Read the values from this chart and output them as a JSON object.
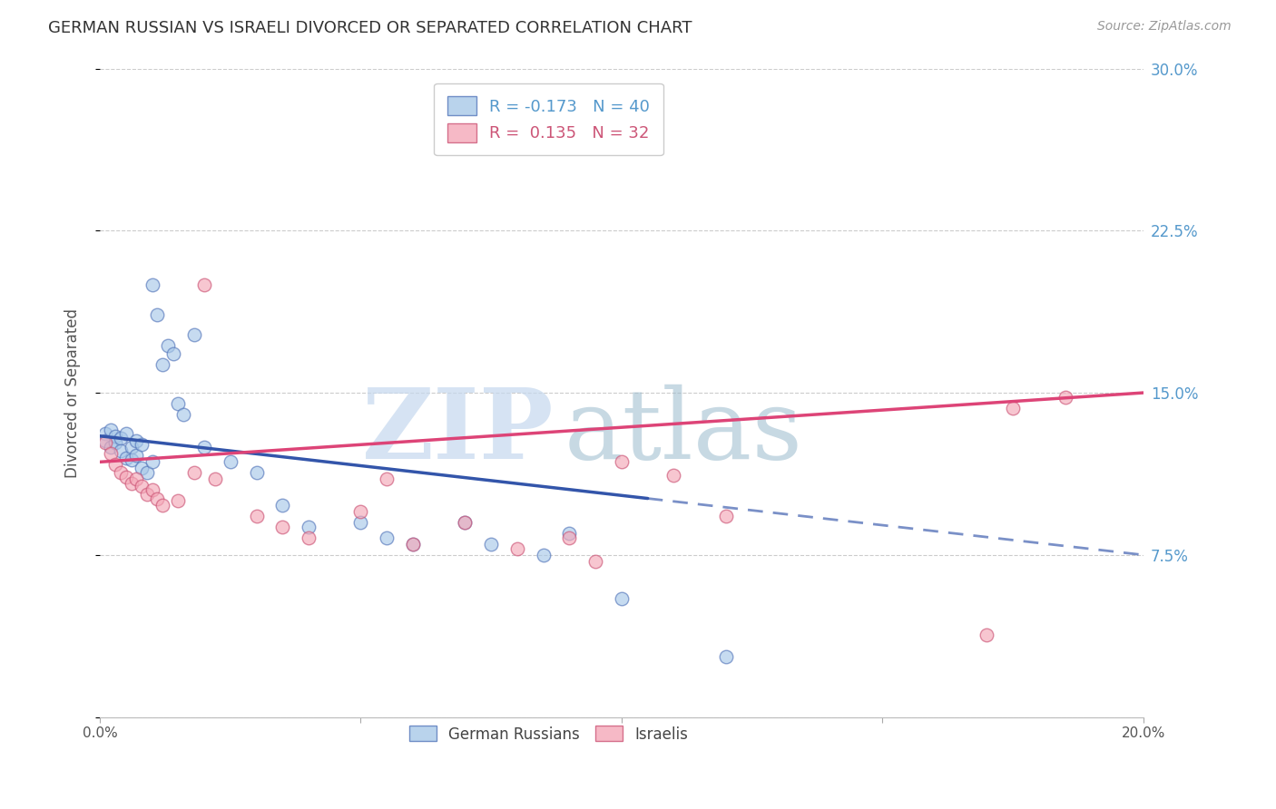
{
  "title": "GERMAN RUSSIAN VS ISRAELI DIVORCED OR SEPARATED CORRELATION CHART",
  "source": "Source: ZipAtlas.com",
  "ylabel": "Divorced or Separated",
  "xlim": [
    0.0,
    0.2
  ],
  "ylim": [
    0.0,
    0.3
  ],
  "blue_r": -0.173,
  "blue_n": 40,
  "pink_r": 0.135,
  "pink_n": 32,
  "blue_color": "#A8C8E8",
  "pink_color": "#F4A8B8",
  "blue_edge_color": "#5577BB",
  "pink_edge_color": "#CC5577",
  "blue_line_color": "#3355AA",
  "pink_line_color": "#DD4477",
  "legend_label_blue": "German Russians",
  "legend_label_pink": "Israelis",
  "background_color": "#FFFFFF",
  "grid_color": "#CCCCCC",
  "right_tick_color": "#5599CC",
  "blue_x": [
    0.001,
    0.001,
    0.002,
    0.002,
    0.003,
    0.003,
    0.004,
    0.004,
    0.005,
    0.005,
    0.006,
    0.006,
    0.007,
    0.007,
    0.008,
    0.008,
    0.009,
    0.01,
    0.01,
    0.011,
    0.012,
    0.013,
    0.014,
    0.015,
    0.016,
    0.018,
    0.02,
    0.025,
    0.03,
    0.035,
    0.04,
    0.05,
    0.055,
    0.06,
    0.07,
    0.075,
    0.085,
    0.09,
    0.1,
    0.12
  ],
  "blue_y": [
    0.131,
    0.128,
    0.133,
    0.125,
    0.13,
    0.127,
    0.129,
    0.123,
    0.131,
    0.12,
    0.125,
    0.119,
    0.128,
    0.121,
    0.126,
    0.115,
    0.113,
    0.118,
    0.2,
    0.186,
    0.163,
    0.172,
    0.168,
    0.145,
    0.14,
    0.177,
    0.125,
    0.118,
    0.113,
    0.098,
    0.088,
    0.09,
    0.083,
    0.08,
    0.09,
    0.08,
    0.075,
    0.085,
    0.055,
    0.028
  ],
  "pink_x": [
    0.001,
    0.002,
    0.003,
    0.004,
    0.005,
    0.006,
    0.007,
    0.008,
    0.009,
    0.01,
    0.011,
    0.012,
    0.015,
    0.018,
    0.02,
    0.022,
    0.03,
    0.035,
    0.04,
    0.05,
    0.055,
    0.06,
    0.07,
    0.08,
    0.09,
    0.095,
    0.1,
    0.11,
    0.12,
    0.17,
    0.175,
    0.185
  ],
  "pink_y": [
    0.127,
    0.122,
    0.117,
    0.113,
    0.111,
    0.108,
    0.11,
    0.107,
    0.103,
    0.105,
    0.101,
    0.098,
    0.1,
    0.113,
    0.2,
    0.11,
    0.093,
    0.088,
    0.083,
    0.095,
    0.11,
    0.08,
    0.09,
    0.078,
    0.083,
    0.072,
    0.118,
    0.112,
    0.093,
    0.038,
    0.143,
    0.148
  ]
}
